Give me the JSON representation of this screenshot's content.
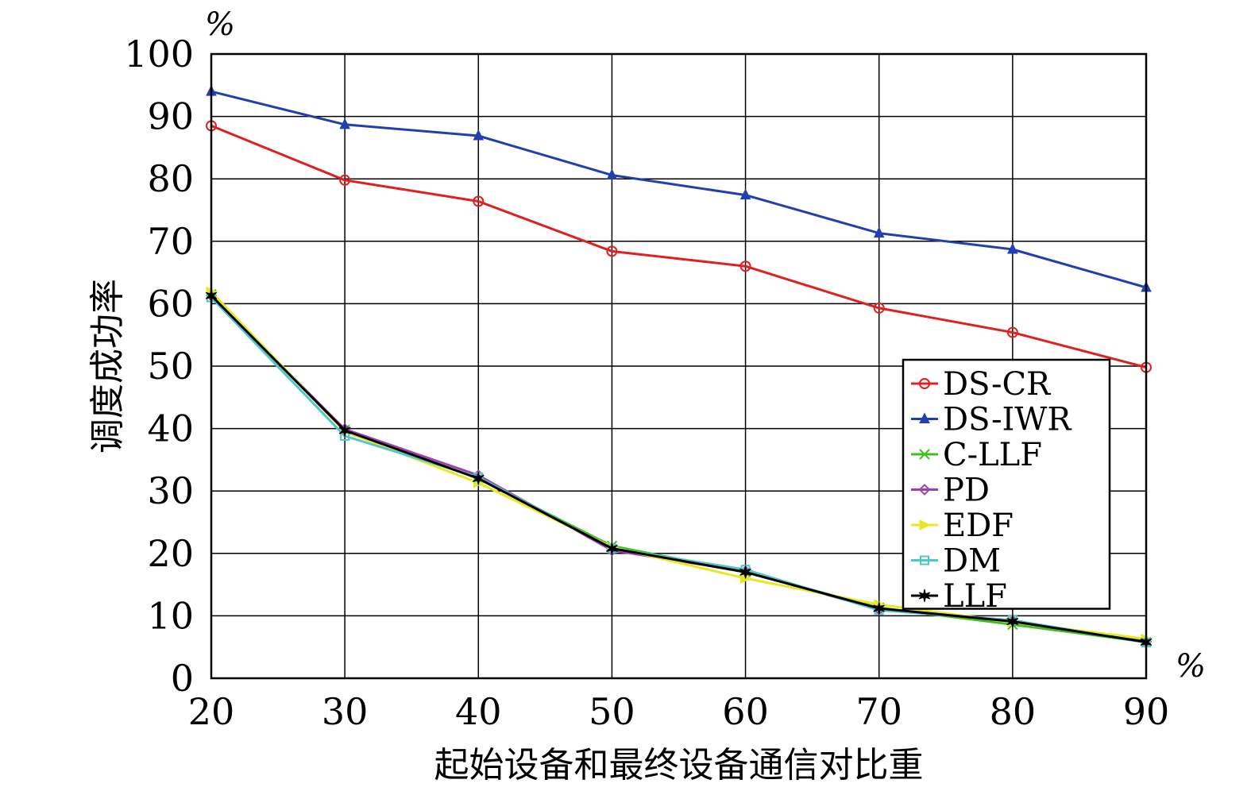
{
  "chart_data": {
    "type": "line",
    "title": "",
    "xlabel": "起始设备和最终设备通信对比重",
    "ylabel": "调度成功率",
    "x_unit": "%",
    "y_unit": "%",
    "x": [
      20,
      30,
      40,
      50,
      60,
      70,
      80,
      90
    ],
    "xlim": [
      20,
      90
    ],
    "ylim": [
      0,
      100
    ],
    "xticks": [
      "20",
      "30",
      "40",
      "50",
      "60",
      "70",
      "80",
      "90"
    ],
    "yticks": [
      "0",
      "10",
      "20",
      "30",
      "40",
      "50",
      "60",
      "70",
      "80",
      "90",
      "100"
    ],
    "grid": true,
    "legend_position": "lower-right",
    "series": [
      {
        "name": "DS-CR",
        "color": "#e02020",
        "marker": "circle",
        "values": [
          88.5,
          79.8,
          76.4,
          68.4,
          66.0,
          59.3,
          55.4,
          49.8
        ]
      },
      {
        "name": "DS-IWR",
        "color": "#2040b0",
        "marker": "triangle",
        "values": [
          94.0,
          88.7,
          86.9,
          80.6,
          77.4,
          71.3,
          68.7,
          62.6
        ]
      },
      {
        "name": "C-LLF",
        "color": "#40c020",
        "marker": "x",
        "values": [
          61.5,
          39.8,
          32.0,
          21.2,
          17.0,
          11.3,
          8.6,
          5.8
        ]
      },
      {
        "name": "PD",
        "color": "#a040b0",
        "marker": "diamond",
        "values": [
          61.3,
          39.9,
          32.5,
          20.5,
          17.1,
          11.0,
          9.2,
          5.9
        ]
      },
      {
        "name": "EDF",
        "color": "#e8e820",
        "marker": "triangle-right",
        "values": [
          61.9,
          39.5,
          31.3,
          21.0,
          16.0,
          11.8,
          9.0,
          6.3
        ]
      },
      {
        "name": "DM",
        "color": "#50c8c8",
        "marker": "square",
        "values": [
          61.0,
          38.8,
          32.2,
          20.8,
          17.4,
          10.9,
          9.3,
          5.7
        ]
      },
      {
        "name": "LLF",
        "color": "#000000",
        "marker": "star",
        "values": [
          61.3,
          39.7,
          32.0,
          20.8,
          17.0,
          11.2,
          9.1,
          5.8
        ]
      }
    ]
  }
}
